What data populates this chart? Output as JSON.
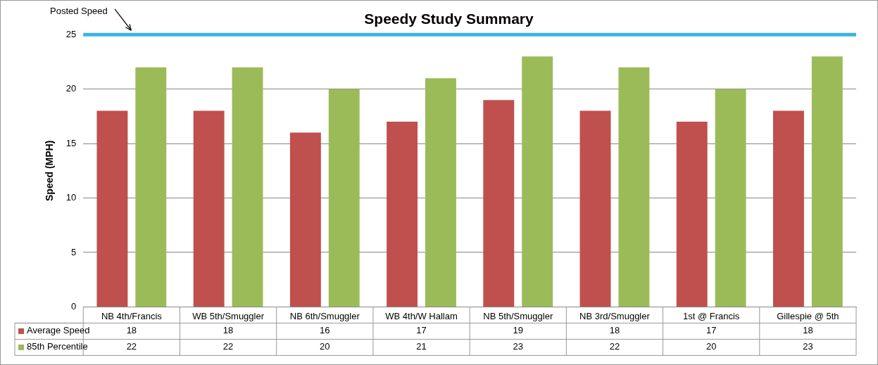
{
  "chart_data": {
    "type": "bar",
    "title": "Speedy Study Summary",
    "ylabel": "Speed (MPH)",
    "categories": [
      "NB 4th/Francis",
      "WB 5th/Smuggler",
      "NB 6th/Smuggler",
      "WB 4th/W Hallam",
      "NB 5th/Smuggler",
      "NB 3rd/Smuggler",
      "1st @ Francis",
      "Gillespie @ 5th"
    ],
    "series": [
      {
        "name": "Average Speed",
        "color": "#c0504d",
        "values": [
          18,
          18,
          16,
          17,
          19,
          18,
          17,
          18
        ]
      },
      {
        "name": "85th Percentile",
        "color": "#9bbb59",
        "values": [
          22,
          22,
          20,
          21,
          23,
          22,
          20,
          23
        ]
      }
    ],
    "ylim": [
      0,
      25
    ],
    "yticks": [
      0,
      5,
      10,
      15,
      20,
      25
    ],
    "grid": "y",
    "legend": "bottom left",
    "data_labels": true,
    "ref_lines": [
      {
        "axis": "y",
        "value": 25,
        "label": "Posted Speed",
        "color": "#3cb4e5"
      }
    ]
  }
}
